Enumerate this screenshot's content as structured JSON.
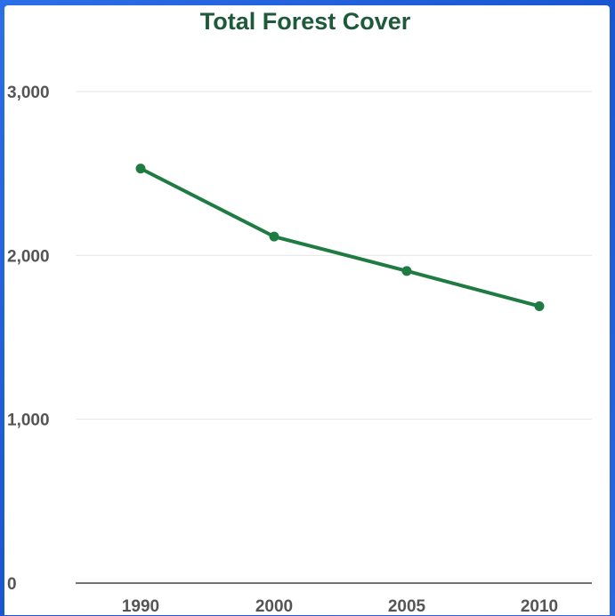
{
  "chart_data": {
    "type": "line",
    "title": "Total Forest Cover",
    "xlabel": "",
    "ylabel": "",
    "categories": [
      "1990",
      "2000",
      "2005",
      "2010"
    ],
    "series": [
      {
        "values": [
          2530,
          2115,
          1905,
          1690
        ]
      }
    ],
    "ylim": [
      0,
      3000
    ],
    "yticks": [
      0,
      1000,
      2000,
      3000
    ],
    "ytick_labels": [
      "0",
      "1,000",
      "2,000",
      "3,000"
    ],
    "grid": true,
    "legend": "none",
    "colors": {
      "line": "#1e7b41",
      "title": "#1e5a3a"
    }
  }
}
